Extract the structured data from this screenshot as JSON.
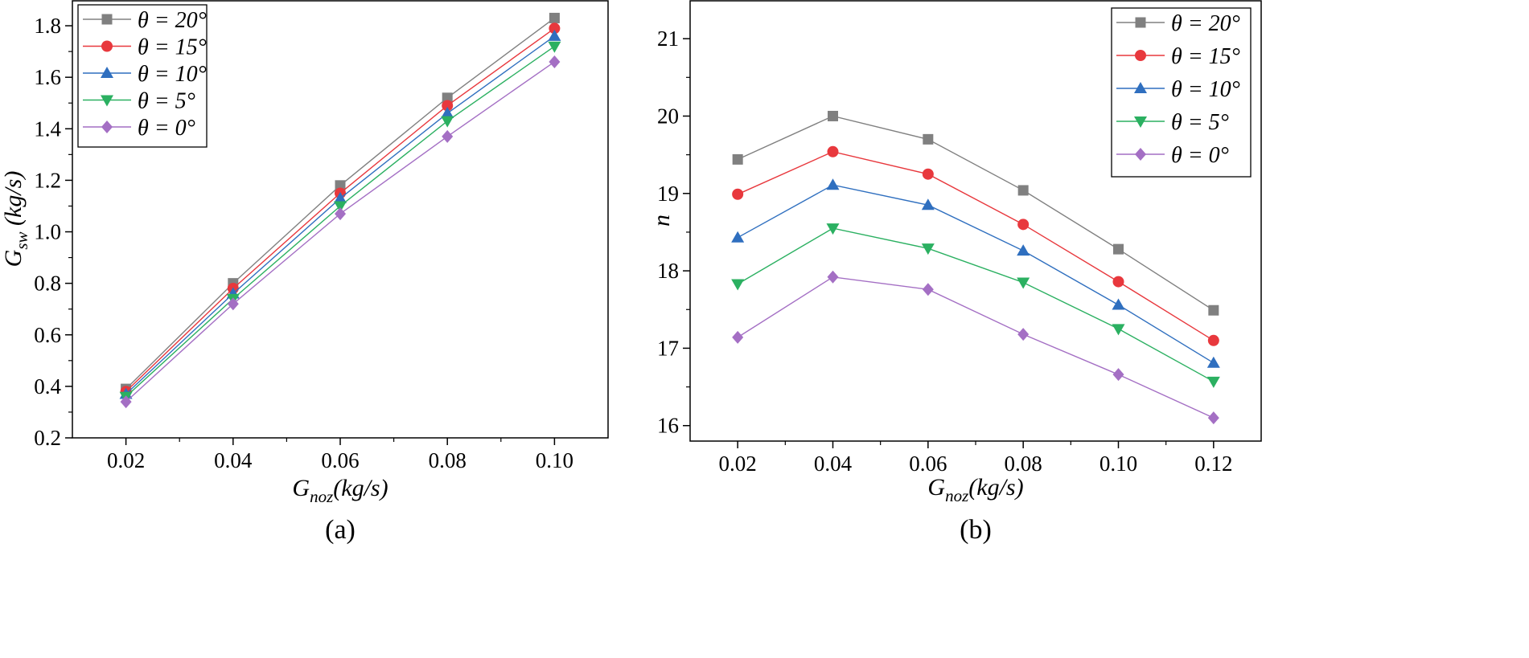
{
  "chart_data": [
    {
      "type": "line",
      "panel_label": "(a)",
      "title": "",
      "xlabel": {
        "main": "G",
        "sub": "noz",
        "unit": "(kg/s)"
      },
      "ylabel": {
        "main": "G",
        "sub": "sw",
        "unit": " (kg/s)"
      },
      "xlim": [
        0.01,
        0.11
      ],
      "ylim": [
        0.2,
        1.9
      ],
      "x": [
        0.02,
        0.04,
        0.06,
        0.08,
        0.1
      ],
      "x_tick_labels": [
        "0.02",
        "0.04",
        "0.06",
        "0.08",
        "0.10"
      ],
      "y_ticks": [
        0.2,
        0.4,
        0.6,
        0.8,
        1.0,
        1.2,
        1.4,
        1.6,
        1.8
      ],
      "y_tick_labels": [
        "0.2",
        "0.4",
        "0.6",
        "0.8",
        "1.0",
        "1.2",
        "1.4",
        "1.6",
        "1.8"
      ],
      "legend_position": "top-left",
      "series": [
        {
          "name": "θ = 20°",
          "color": "#808080",
          "marker": "square",
          "values": [
            0.39,
            0.8,
            1.18,
            1.52,
            1.83
          ]
        },
        {
          "name": "θ = 15°",
          "color": "#e8383d",
          "marker": "circle",
          "values": [
            0.38,
            0.78,
            1.15,
            1.49,
            1.79
          ]
        },
        {
          "name": "θ = 10°",
          "color": "#2f6fbf",
          "marker": "triangle-up",
          "values": [
            0.37,
            0.76,
            1.13,
            1.46,
            1.76
          ]
        },
        {
          "name": "θ = 5°",
          "color": "#2bb061",
          "marker": "triangle-down",
          "values": [
            0.36,
            0.74,
            1.1,
            1.43,
            1.72
          ]
        },
        {
          "name": "θ = 0°",
          "color": "#a46fc4",
          "marker": "diamond",
          "values": [
            0.34,
            0.72,
            1.07,
            1.37,
            1.66
          ]
        }
      ]
    },
    {
      "type": "line",
      "panel_label": "(b)",
      "title": "",
      "xlabel": {
        "main": "G",
        "sub": "noz",
        "unit": "(kg/s)"
      },
      "ylabel": {
        "main": "n",
        "sub": "",
        "unit": ""
      },
      "xlim": [
        0.01,
        0.13
      ],
      "ylim": [
        15.8,
        21.5
      ],
      "x": [
        0.02,
        0.04,
        0.06,
        0.08,
        0.1,
        0.12
      ],
      "x_tick_labels": [
        "0.02",
        "0.04",
        "0.06",
        "0.08",
        "0.10",
        "0.12"
      ],
      "y_ticks": [
        16,
        17,
        18,
        19,
        20,
        21
      ],
      "y_tick_labels": [
        "16",
        "17",
        "18",
        "19",
        "20",
        "21"
      ],
      "legend_position": "top-right",
      "series": [
        {
          "name": "θ = 20°",
          "color": "#808080",
          "marker": "square",
          "values": [
            19.44,
            20.0,
            19.7,
            19.04,
            18.28,
            17.49
          ]
        },
        {
          "name": "θ = 15°",
          "color": "#e8383d",
          "marker": "circle",
          "values": [
            18.99,
            19.54,
            19.25,
            18.6,
            17.86,
            17.1
          ]
        },
        {
          "name": "θ = 10°",
          "color": "#2f6fbf",
          "marker": "triangle-up",
          "values": [
            18.43,
            19.11,
            18.85,
            18.26,
            17.56,
            16.81
          ]
        },
        {
          "name": "θ = 5°",
          "color": "#2bb061",
          "marker": "triangle-down",
          "values": [
            17.83,
            18.55,
            18.29,
            17.85,
            17.25,
            16.57
          ]
        },
        {
          "name": "θ = 0°",
          "color": "#a46fc4",
          "marker": "diamond",
          "values": [
            17.14,
            17.92,
            17.76,
            17.18,
            16.66,
            16.1
          ]
        }
      ]
    }
  ]
}
